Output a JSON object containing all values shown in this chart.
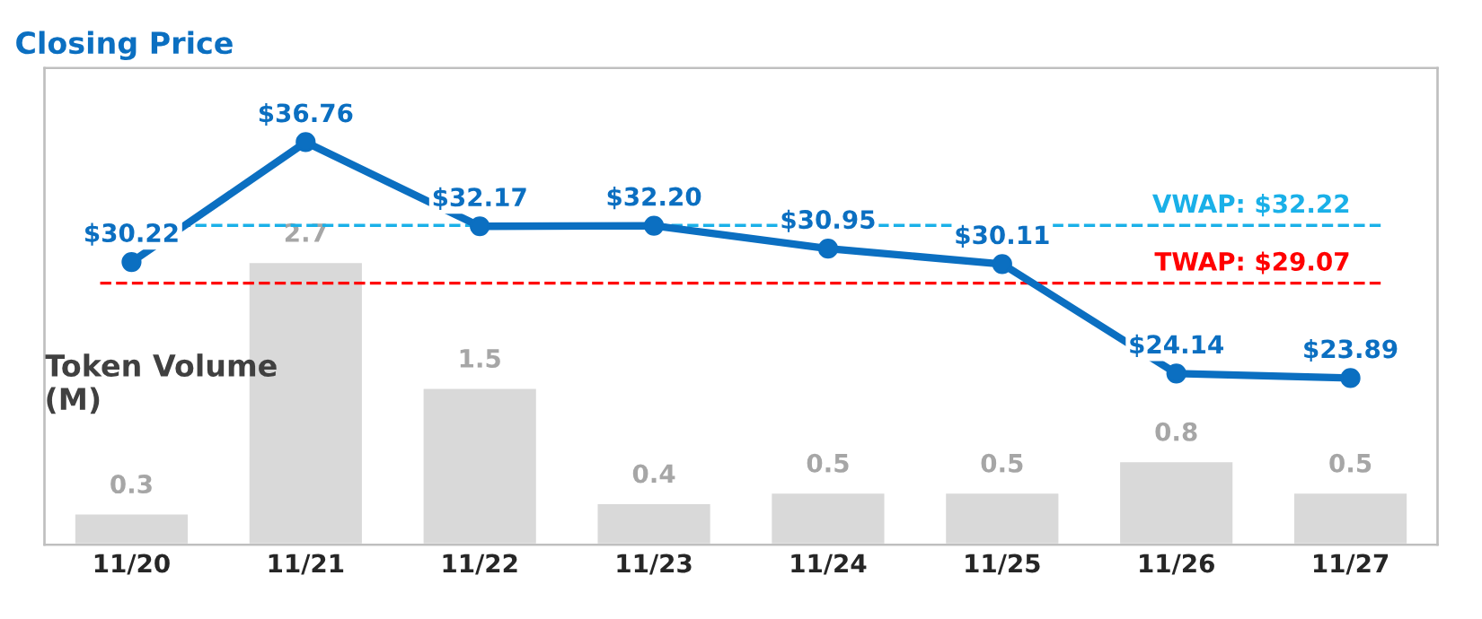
{
  "chart_data": {
    "type": "bar",
    "ylabel": "Token Volume (M)",
    "y2label": "Closing Price",
    "categories": [
      "11/20",
      "11/21",
      "11/22",
      "11/23",
      "11/24",
      "11/25",
      "11/26",
      "11/27"
    ],
    "series": [
      {
        "color": "#d9d9d9",
        "values": [
          0.3,
          2.7,
          1.5,
          0.4,
          0.5,
          0.5,
          0.8,
          0.5
        ],
        "value_labels": [
          "0.3",
          "2.7",
          "1.5",
          "0.4",
          "0.5",
          "0.5",
          "0.8",
          "0.5"
        ]
      },
      {
        "type": "line",
        "axis": "y2",
        "color": "#0b6fc1",
        "values": [
          30.22,
          36.76,
          32.17,
          32.2,
          30.95,
          30.11,
          24.14,
          23.89
        ],
        "value_labels": [
          "$30.22",
          "$36.76",
          "$32.17",
          "$32.20",
          "$30.95",
          "$30.11",
          "$24.14",
          "$23.89"
        ]
      }
    ],
    "ylim": [
      0,
      4.55
    ],
    "y2lim": [
      14.8,
      40.8
    ],
    "ref_lines": [
      {
        "axis": "y2",
        "value": 32.22,
        "label": "VWAP: $32.22",
        "color": "#1ab0e8",
        "line_style": "dashed"
      },
      {
        "axis": "y2",
        "value": 29.07,
        "label": "TWAP: $29.07",
        "color": "#ff0000",
        "line_style": "dashed"
      }
    ],
    "marker": "circle",
    "line_style": "solid",
    "grid": false,
    "legend": false,
    "tick_labels": "x"
  }
}
